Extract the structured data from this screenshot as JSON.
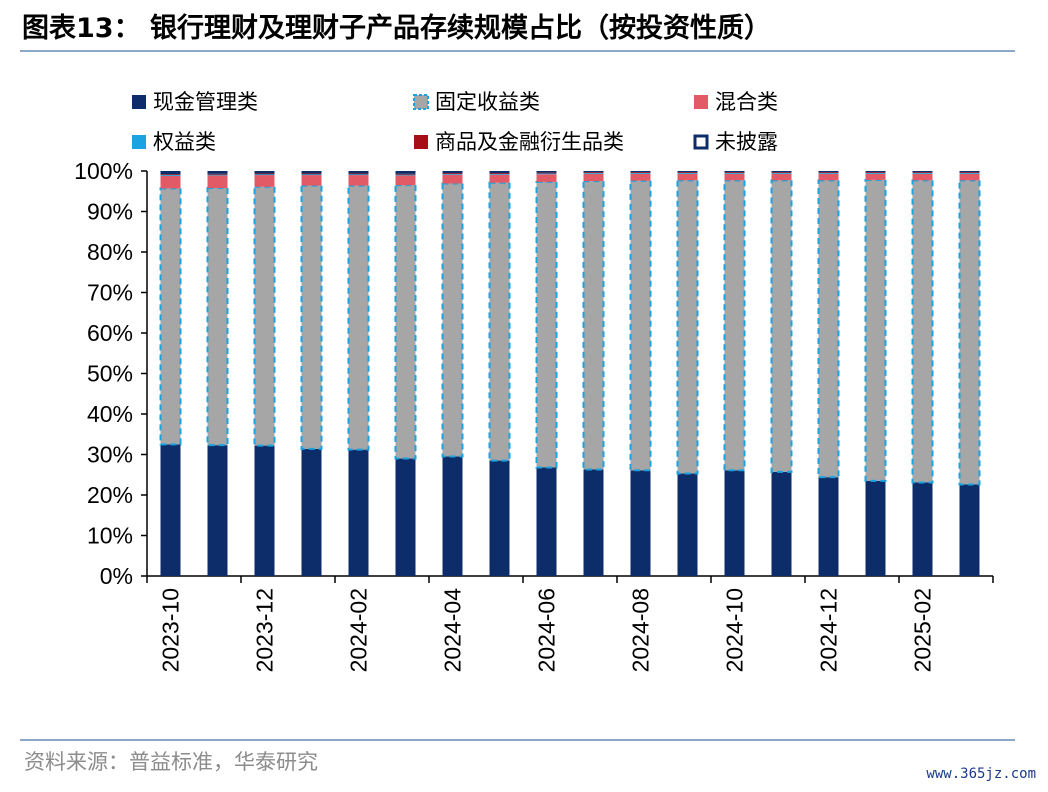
{
  "title": "图表13：  银行理财及理财子产品存续规模占比（按投资性质）",
  "source": "资料来源：普益标准，华泰研究",
  "watermark": "www.365jz.com",
  "colors": {
    "cash": "#0c2d69",
    "fixed_fill": "#a6a6a6",
    "fixed_border": "#1aa3e0",
    "mixed": "#e35a67",
    "equity": "#1aa3e0",
    "commodity": "#a50f15",
    "undisclosed": "#0c2d69"
  },
  "chart_data": {
    "type": "bar",
    "stacked": true,
    "categories": [
      "2023-10",
      "2023-11",
      "2023-12",
      "2024-01",
      "2024-02",
      "2024-03",
      "2024-04",
      "2024-05",
      "2024-06",
      "2024-07",
      "2024-08",
      "2024-09",
      "2024-10",
      "2024-11",
      "2024-12",
      "2025-01",
      "2025-02",
      "2025-03"
    ],
    "x_tick_labels": [
      "2023-10",
      "2023-12",
      "2024-02",
      "2024-04",
      "2024-06",
      "2024-08",
      "2024-10",
      "2024-12",
      "2025-02"
    ],
    "y_tick_labels": [
      "0%",
      "10%",
      "20%",
      "30%",
      "40%",
      "50%",
      "60%",
      "70%",
      "80%",
      "90%",
      "100%"
    ],
    "ylim": [
      0,
      100
    ],
    "legend_position": "top",
    "series": [
      {
        "name": "现金管理类",
        "key": "cash",
        "values": [
          32.5,
          32.3,
          32.2,
          31.4,
          31.2,
          29.0,
          29.5,
          28.5,
          26.8,
          26.3,
          26.1,
          25.3,
          26.1,
          25.7,
          24.4,
          23.5,
          23.1,
          22.6
        ]
      },
      {
        "name": "固定收益类",
        "key": "fixed",
        "values": [
          63.2,
          63.5,
          63.9,
          65.0,
          65.2,
          67.5,
          67.4,
          68.6,
          70.5,
          71.2,
          71.5,
          72.4,
          71.6,
          72.0,
          73.3,
          74.3,
          74.6,
          75.1
        ]
      },
      {
        "name": "混合类",
        "key": "mixed",
        "values": [
          3.1,
          3.1,
          2.9,
          2.6,
          2.6,
          2.4,
          2.2,
          2.0,
          1.9,
          1.8,
          1.7,
          1.6,
          1.6,
          1.6,
          1.6,
          1.5,
          1.6,
          1.6
        ]
      },
      {
        "name": "权益类",
        "key": "equity",
        "values": [
          0.3,
          0.3,
          0.3,
          0.3,
          0.3,
          0.3,
          0.3,
          0.3,
          0.3,
          0.3,
          0.3,
          0.3,
          0.3,
          0.3,
          0.3,
          0.3,
          0.3,
          0.3
        ]
      },
      {
        "name": "商品及金融衍生品类",
        "key": "commodity",
        "values": [
          0.1,
          0.1,
          0.1,
          0.1,
          0.1,
          0.1,
          0.1,
          0.1,
          0.1,
          0.1,
          0.1,
          0.1,
          0.1,
          0.1,
          0.1,
          0.1,
          0.1,
          0.1
        ]
      },
      {
        "name": "未披露",
        "key": "undisclosed",
        "values": [
          0.8,
          0.7,
          0.6,
          0.6,
          0.6,
          0.7,
          0.5,
          0.5,
          0.4,
          0.3,
          0.3,
          0.3,
          0.3,
          0.3,
          0.3,
          0.3,
          0.3,
          0.3
        ]
      }
    ]
  }
}
